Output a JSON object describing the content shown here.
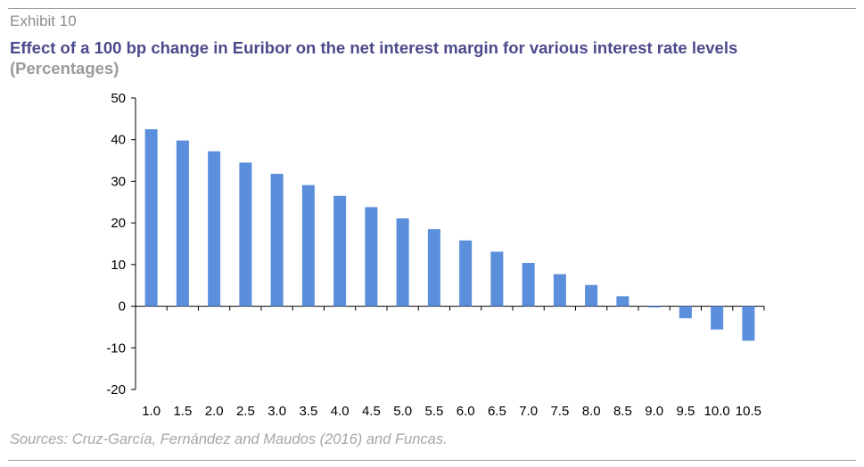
{
  "exhibit_label": "Exhibit 10",
  "title": "Effect of a 100 bp change in Euribor on the net interest margin for various interest rate levels",
  "subtitle": "(Percentages)",
  "source": "Sources: Cruz-García, Fernández and Maudos (2016) and Funcas.",
  "colors": {
    "bar": "#5b8fdc",
    "title": "#4b4a8c",
    "subtitle": "#9a9a9a"
  },
  "chart_data": {
    "type": "bar",
    "categories": [
      "1.0",
      "1.5",
      "2.0",
      "2.5",
      "3.0",
      "3.5",
      "4.0",
      "4.5",
      "5.0",
      "5.5",
      "6.0",
      "6.5",
      "7.0",
      "7.5",
      "8.0",
      "8.5",
      "9.0",
      "9.5",
      "10.0",
      "10.5"
    ],
    "series": [
      {
        "values": [
          42.5,
          39.8,
          37.2,
          34.5,
          31.8,
          29.1,
          26.5,
          23.8,
          21.1,
          18.5,
          15.8,
          13.1,
          10.4,
          7.7,
          5.1,
          2.4,
          -0.3,
          -2.9,
          -5.6,
          -8.3
        ]
      }
    ],
    "ylim": [
      -20,
      50
    ],
    "yticks": [
      50,
      40,
      30,
      20,
      10,
      0,
      -10,
      -20
    ],
    "xlabel": "",
    "ylabel": "",
    "grid": false,
    "legend": false
  }
}
